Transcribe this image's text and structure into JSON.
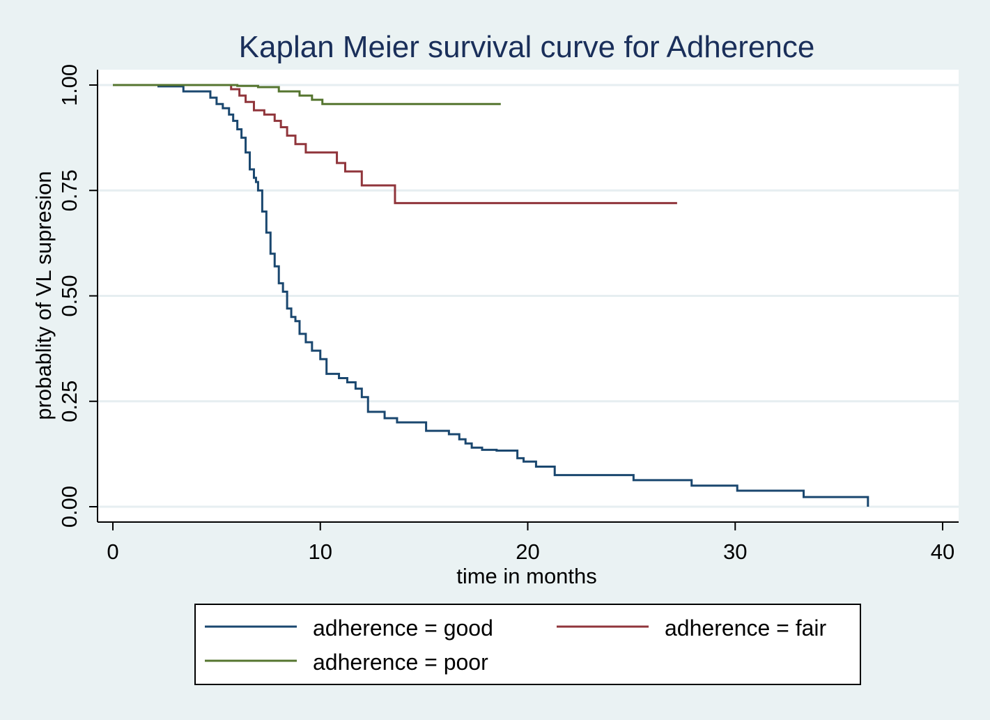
{
  "chart_data": {
    "type": "line",
    "step": true,
    "title": "Kaplan Meier survival curve for Adherence",
    "xlabel": "time in months",
    "ylabel": "probablity of VL supresion",
    "xlim": [
      0,
      40
    ],
    "ylim": [
      0,
      1
    ],
    "xticks": [
      0,
      10,
      20,
      30,
      40
    ],
    "xtick_labels": [
      "0",
      "10",
      "20",
      "30",
      "40"
    ],
    "yticks": [
      0,
      0.25,
      0.5,
      0.75,
      1
    ],
    "ytick_labels": [
      "0.00",
      "0.25",
      "0.50",
      "0.75",
      "1.00"
    ],
    "grid": "horizontal",
    "legend_position": "bottom",
    "colors": {
      "background": "#eaf2f3",
      "plot_background": "#ffffff",
      "grid": "#e6eef1",
      "text": "#1a2f5a",
      "axis": "#000000"
    },
    "series": [
      {
        "name": "adherence = good",
        "color": "#1a476f",
        "x": [
          0,
          2.2,
          3.4,
          4.7,
          5.0,
          5.3,
          5.6,
          5.8,
          6.0,
          6.2,
          6.4,
          6.6,
          6.8,
          6.9,
          7.0,
          7.2,
          7.4,
          7.6,
          7.8,
          8.0,
          8.2,
          8.4,
          8.6,
          8.8,
          9.0,
          9.3,
          9.6,
          10.0,
          10.3,
          10.9,
          11.3,
          11.7,
          12.0,
          12.3,
          13.1,
          13.7,
          15.1,
          16.2,
          16.7,
          17.0,
          17.3,
          17.8,
          18.5,
          19.5,
          19.8,
          20.4,
          21.3,
          25.1,
          27.9,
          30.1,
          33.3,
          36.4
        ],
        "y": [
          1.0,
          0.997,
          0.985,
          0.97,
          0.955,
          0.945,
          0.93,
          0.915,
          0.895,
          0.875,
          0.84,
          0.8,
          0.78,
          0.77,
          0.75,
          0.7,
          0.65,
          0.6,
          0.57,
          0.53,
          0.51,
          0.47,
          0.45,
          0.44,
          0.41,
          0.39,
          0.37,
          0.35,
          0.315,
          0.305,
          0.295,
          0.28,
          0.26,
          0.225,
          0.21,
          0.2,
          0.18,
          0.172,
          0.16,
          0.15,
          0.14,
          0.135,
          0.133,
          0.115,
          0.107,
          0.095,
          0.075,
          0.063,
          0.05,
          0.038,
          0.023,
          0.0
        ]
      },
      {
        "name": "adherence = fair",
        "color": "#90353b",
        "x": [
          0,
          5.7,
          6.1,
          6.4,
          6.8,
          7.3,
          7.8,
          8.1,
          8.4,
          8.8,
          9.3,
          10.8,
          11.2,
          12.0,
          13.6,
          27.2
        ],
        "y": [
          1.0,
          0.99,
          0.975,
          0.96,
          0.94,
          0.93,
          0.915,
          0.9,
          0.88,
          0.86,
          0.84,
          0.815,
          0.795,
          0.762,
          0.72,
          0.72
        ]
      },
      {
        "name": "adherence = poor",
        "color": "#55752f",
        "x": [
          0,
          6.0,
          7.0,
          8.0,
          9.0,
          9.6,
          10.1,
          18.7
        ],
        "y": [
          1.0,
          0.998,
          0.995,
          0.985,
          0.975,
          0.965,
          0.955,
          0.955
        ]
      }
    ]
  }
}
